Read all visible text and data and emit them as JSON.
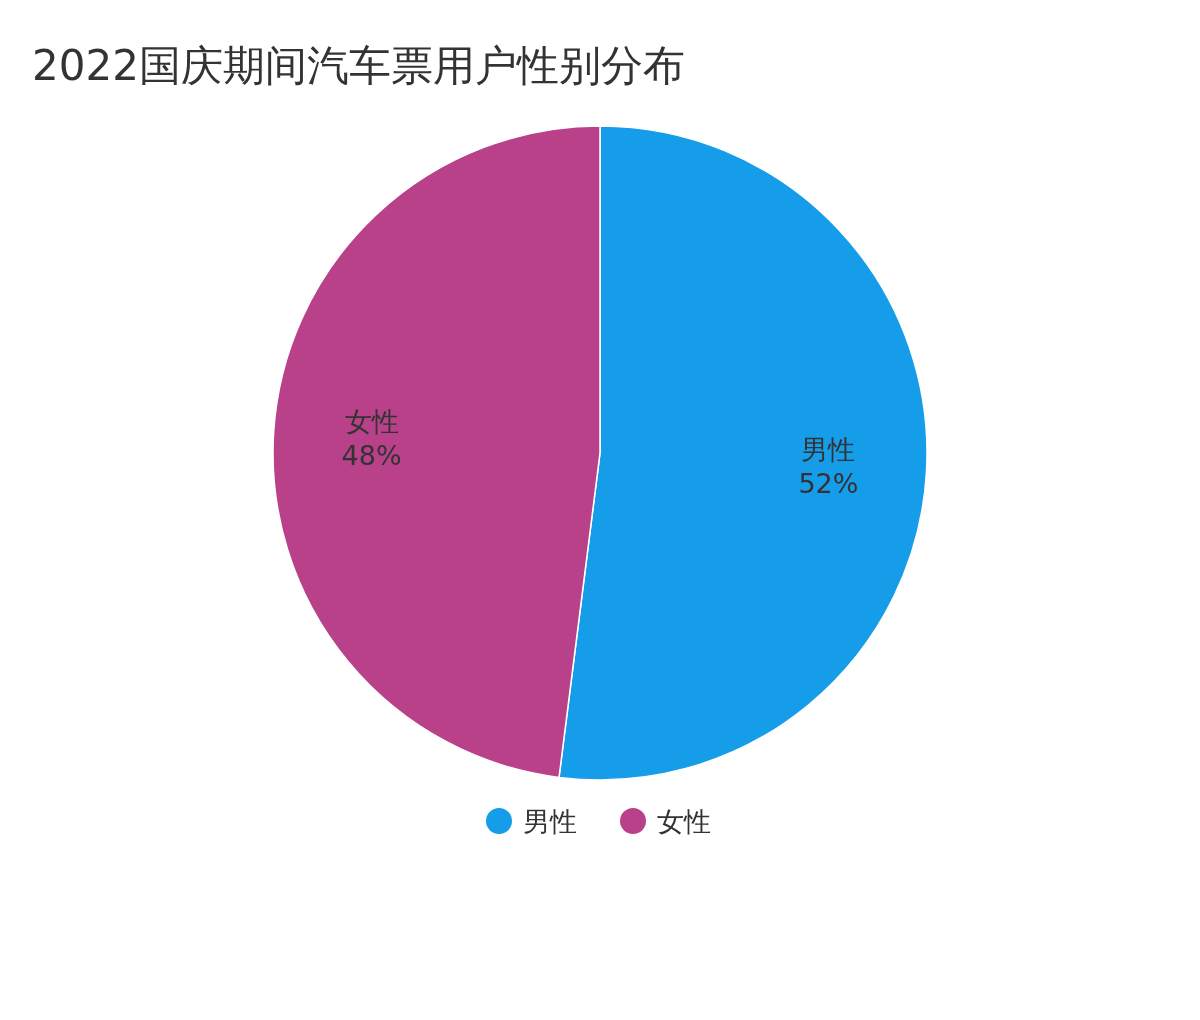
{
  "chart_data": {
    "type": "pie",
    "title": "2022国庆期间汽车票用户性别分布",
    "categories": [
      "男性",
      "女性"
    ],
    "values": [
      52,
      48
    ],
    "colors": [
      "#159dea",
      "#b8418a"
    ],
    "value_labels": [
      "52%",
      "48%"
    ],
    "legend": "bottom"
  }
}
